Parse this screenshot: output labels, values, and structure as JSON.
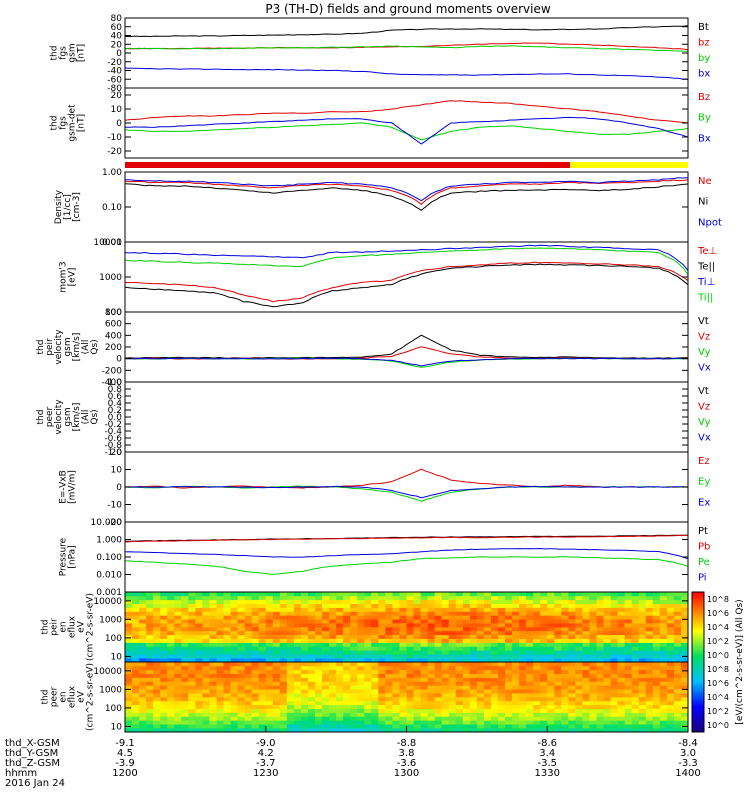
{
  "title": "P3 (TH-D) fields and ground moments overview",
  "x_axis": {
    "ticks": [
      "1200",
      "1230",
      "1300",
      "1330",
      "1400"
    ],
    "range_minutes": [
      0,
      120
    ],
    "ephemeris_rows": [
      {
        "label": "thd_X-GSM",
        "values": [
          "-9.1",
          "-9.0",
          "-8.8",
          "-8.6",
          "-8.4"
        ]
      },
      {
        "label": "thd_Y-GSM",
        "values": [
          "4.5",
          "4.2",
          "3.8",
          "3.4",
          "3.0"
        ]
      },
      {
        "label": "thd_Z-GSM",
        "values": [
          "-3.9",
          "-3.7",
          "-3.6",
          "-3.5",
          "-3.3"
        ]
      },
      {
        "label": "hhmm",
        "values": [
          "1200",
          "1230",
          "1300",
          "1330",
          "1400"
        ]
      }
    ],
    "date": "2016 Jan 24"
  },
  "colors": {
    "black": "#000000",
    "red": "#e00000",
    "green": "#00d000",
    "blue": "#0000e0",
    "yellow": "#ffff00"
  },
  "colorbar": {
    "label": "[eV/(cm^2-s-sr-eV)] (All Qs)",
    "tick_labels": [
      "10^8",
      "10^6",
      "10^4",
      "10^2",
      "10^0",
      "10^8",
      "10^6",
      "10^4",
      "10^2",
      "10^0"
    ]
  },
  "chart_data": [
    {
      "type": "line",
      "ylabel": "thd fgs gsm [nT]",
      "yticks": [
        "-80",
        "-60",
        "-40",
        "-20",
        "0",
        "20",
        "40",
        "60",
        "80"
      ],
      "ylim": [
        -80,
        80
      ],
      "scale": "linear",
      "series": [
        {
          "name": "Bt",
          "color": "black",
          "values": [
            38,
            38,
            39,
            39,
            40,
            41,
            42,
            43,
            45,
            52,
            54,
            55,
            55,
            54,
            53,
            54,
            55,
            58,
            60,
            62
          ]
        },
        {
          "name": "bz",
          "color": "red",
          "values": [
            10,
            10,
            10,
            11,
            11,
            12,
            12,
            12,
            13,
            14,
            15,
            18,
            20,
            22,
            23,
            20,
            18,
            15,
            12,
            8
          ]
        },
        {
          "name": "by",
          "color": "green",
          "values": [
            10,
            10,
            10,
            10,
            11,
            12,
            12,
            13,
            14,
            16,
            14,
            12,
            15,
            16,
            14,
            12,
            10,
            8,
            6,
            4
          ]
        },
        {
          "name": "bx",
          "color": "blue",
          "values": [
            -35,
            -36,
            -37,
            -37,
            -38,
            -38,
            -39,
            -40,
            -42,
            -48,
            -50,
            -50,
            -50,
            -49,
            -48,
            -48,
            -50,
            -52,
            -55,
            -60
          ]
        }
      ]
    },
    {
      "type": "line",
      "ylabel": "thd fgs gsm-det [nT]",
      "yticks": [
        "-20",
        "-10",
        "0",
        "10",
        "20"
      ],
      "ylim": [
        -25,
        25
      ],
      "scale": "linear",
      "series": [
        {
          "name": "Bz",
          "color": "red",
          "values": [
            2,
            4,
            5,
            5,
            6,
            7,
            7,
            8,
            8,
            10,
            13,
            16,
            15,
            14,
            12,
            10,
            8,
            5,
            2,
            0
          ]
        },
        {
          "name": "By",
          "color": "green",
          "values": [
            -5,
            -6,
            -6,
            -5,
            -4,
            -3,
            -2,
            -1,
            0,
            -3,
            -12,
            -6,
            -3,
            -2,
            -4,
            -6,
            -8,
            -8,
            -6,
            -4
          ]
        },
        {
          "name": "Bx",
          "color": "blue",
          "values": [
            -3,
            -3,
            -2,
            -1,
            0,
            1,
            2,
            3,
            3,
            0,
            -15,
            0,
            1,
            2,
            3,
            4,
            3,
            0,
            -4,
            -10
          ]
        }
      ]
    },
    {
      "type": "line",
      "ylabel": "Density [1/cc] [cm-3]",
      "yticks": [
        "0.01",
        "0.10",
        "1.00"
      ],
      "ylim": [
        0.01,
        1
      ],
      "scale": "log",
      "series": [
        {
          "name": "Ne",
          "color": "red",
          "values": [
            0.55,
            0.5,
            0.5,
            0.45,
            0.4,
            0.35,
            0.42,
            0.45,
            0.4,
            0.3,
            0.12,
            0.35,
            0.4,
            0.45,
            0.45,
            0.5,
            0.48,
            0.5,
            0.55,
            0.6
          ]
        },
        {
          "name": "Ni",
          "color": "black",
          "values": [
            0.45,
            0.4,
            0.4,
            0.35,
            0.3,
            0.25,
            0.3,
            0.35,
            0.3,
            0.2,
            0.08,
            0.25,
            0.28,
            0.3,
            0.3,
            0.32,
            0.3,
            0.32,
            0.38,
            0.45
          ]
        },
        {
          "name": "Npot",
          "color": "blue",
          "values": [
            0.6,
            0.55,
            0.55,
            0.5,
            0.45,
            0.4,
            0.45,
            0.5,
            0.45,
            0.35,
            0.15,
            0.4,
            0.45,
            0.5,
            0.5,
            0.55,
            0.5,
            0.55,
            0.6,
            0.7
          ]
        }
      ]
    },
    {
      "type": "line",
      "ylabel": "mom'3 [eV]",
      "yticks": [
        "100",
        "1000",
        "10000"
      ],
      "ylim": [
        100,
        10000
      ],
      "scale": "log",
      "series": [
        {
          "name": "Te⊥",
          "color": "red",
          "values": [
            700,
            650,
            600,
            500,
            300,
            200,
            250,
            500,
            700,
            800,
            1500,
            2000,
            2200,
            2500,
            2600,
            2500,
            2400,
            2200,
            2000,
            800
          ]
        },
        {
          "name": "Te||",
          "color": "black",
          "values": [
            500,
            450,
            400,
            350,
            200,
            140,
            180,
            400,
            500,
            600,
            1200,
            1800,
            2000,
            2200,
            2300,
            2200,
            2100,
            2000,
            1800,
            600
          ]
        },
        {
          "name": "Ti⊥",
          "color": "blue",
          "values": [
            5000,
            4800,
            4500,
            4200,
            4000,
            3800,
            3500,
            5000,
            5200,
            5500,
            6000,
            6500,
            7000,
            7500,
            8000,
            7500,
            7000,
            6500,
            6000,
            1500
          ]
        },
        {
          "name": "Ti||",
          "color": "green",
          "values": [
            3000,
            2800,
            2600,
            2500,
            2300,
            2100,
            2000,
            3500,
            4000,
            4500,
            5000,
            5500,
            6000,
            6500,
            6800,
            6500,
            6000,
            5500,
            5000,
            1200
          ]
        }
      ]
    },
    {
      "type": "line",
      "ylabel": "thd peir velocity gsm [km/s] (All Qs)",
      "yticks": [
        "-400",
        "-200",
        "0",
        "200",
        "400",
        "600",
        "800"
      ],
      "ylim": [
        -400,
        800
      ],
      "scale": "linear",
      "series": [
        {
          "name": "Vt",
          "color": "black",
          "values": [
            10,
            15,
            20,
            15,
            10,
            20,
            15,
            20,
            30,
            80,
            400,
            150,
            60,
            30,
            20,
            30,
            10,
            10,
            10,
            10
          ]
        },
        {
          "name": "Vz",
          "color": "red",
          "values": [
            0,
            5,
            -5,
            0,
            5,
            0,
            -5,
            0,
            10,
            40,
            200,
            80,
            30,
            10,
            0,
            10,
            0,
            0,
            0,
            0
          ]
        },
        {
          "name": "Vy",
          "color": "green",
          "values": [
            0,
            -5,
            5,
            0,
            -5,
            0,
            5,
            0,
            -10,
            -40,
            -150,
            -60,
            -20,
            -5,
            0,
            5,
            0,
            0,
            0,
            0
          ]
        },
        {
          "name": "Vx",
          "color": "blue",
          "values": [
            0,
            0,
            5,
            0,
            0,
            -5,
            0,
            5,
            0,
            -30,
            -120,
            -40,
            -20,
            0,
            5,
            0,
            0,
            0,
            0,
            0
          ]
        }
      ]
    },
    {
      "type": "line",
      "ylabel": "thd peer velocity gsm [km/s] (All Qs)",
      "yticks": [
        "-1.0",
        "-0.8",
        "-0.6",
        "-0.4",
        "-0.2",
        "0.0",
        "0.2",
        "0.4",
        "0.6",
        "0.8",
        "1.0"
      ],
      "ylim": [
        -1,
        1
      ],
      "scale": "linear",
      "series": [
        {
          "name": "Vt",
          "color": "black",
          "values": []
        },
        {
          "name": "Vz",
          "color": "red",
          "values": []
        },
        {
          "name": "Vy",
          "color": "green",
          "values": []
        },
        {
          "name": "Vx",
          "color": "blue",
          "values": []
        }
      ]
    },
    {
      "type": "line",
      "ylabel": "E=-VxB [mV/m]",
      "yticks": [
        "-20",
        "-10",
        "0",
        "10",
        "20"
      ],
      "ylim": [
        -20,
        20
      ],
      "scale": "linear",
      "series": [
        {
          "name": "Ez",
          "color": "red",
          "values": [
            0,
            0.5,
            -0.5,
            0,
            0.5,
            0,
            -0.5,
            0,
            1,
            3,
            10,
            4,
            2,
            1,
            0,
            1,
            0,
            0,
            0,
            0
          ]
        },
        {
          "name": "Ey",
          "color": "green",
          "values": [
            0,
            -0.5,
            0.5,
            0,
            -0.5,
            0,
            0.5,
            0,
            -1,
            -3,
            -8,
            -3,
            -1,
            0,
            0,
            0,
            0,
            0,
            0,
            0
          ]
        },
        {
          "name": "Ex",
          "color": "blue",
          "values": [
            0,
            0,
            0.3,
            0,
            0,
            -0.3,
            0,
            0.3,
            0,
            -2,
            -6,
            -2,
            -1,
            0,
            0.3,
            0,
            0,
            0,
            0,
            0
          ]
        }
      ]
    },
    {
      "type": "line",
      "ylabel": "Pressure [nPa]",
      "yticks": [
        "0.001",
        "0.010",
        "0.100",
        "1.000",
        "10.000"
      ],
      "ylim": [
        0.001,
        10
      ],
      "scale": "log",
      "series": [
        {
          "name": "Pt",
          "color": "black",
          "values": [
            0.8,
            0.85,
            0.9,
            0.95,
            1.0,
            1.05,
            1.1,
            1.15,
            1.2,
            1.3,
            1.35,
            1.4,
            1.4,
            1.45,
            1.5,
            1.5,
            1.55,
            1.6,
            1.7,
            1.8
          ]
        },
        {
          "name": "Pb",
          "color": "red",
          "values": [
            0.75,
            0.8,
            0.85,
            0.9,
            0.95,
            1.0,
            1.05,
            1.1,
            1.15,
            1.2,
            1.25,
            1.3,
            1.3,
            1.35,
            1.4,
            1.4,
            1.45,
            1.5,
            1.6,
            1.7
          ]
        },
        {
          "name": "Pe",
          "color": "green",
          "values": [
            0.06,
            0.05,
            0.04,
            0.03,
            0.015,
            0.01,
            0.015,
            0.03,
            0.04,
            0.05,
            0.08,
            0.09,
            0.1,
            0.1,
            0.1,
            0.1,
            0.09,
            0.08,
            0.07,
            0.03
          ]
        },
        {
          "name": "Pi",
          "color": "blue",
          "values": [
            0.2,
            0.18,
            0.16,
            0.14,
            0.12,
            0.1,
            0.1,
            0.12,
            0.14,
            0.15,
            0.2,
            0.25,
            0.28,
            0.3,
            0.3,
            0.28,
            0.26,
            0.24,
            0.2,
            0.08
          ]
        }
      ]
    },
    {
      "type": "heatmap",
      "ylabel": "thd peir en eflux eV (cm^2-s-sr-eV)",
      "yticks": [
        "10",
        "100",
        "1000",
        "10000"
      ],
      "ylim": [
        5,
        30000
      ],
      "scale": "log"
    },
    {
      "type": "heatmap",
      "ylabel": "thd peer en eflux eV (cm^2-s-sr-eV)",
      "yticks": [
        "10",
        "100",
        "1000",
        "10000"
      ],
      "ylim": [
        5,
        30000
      ],
      "scale": "log"
    }
  ]
}
